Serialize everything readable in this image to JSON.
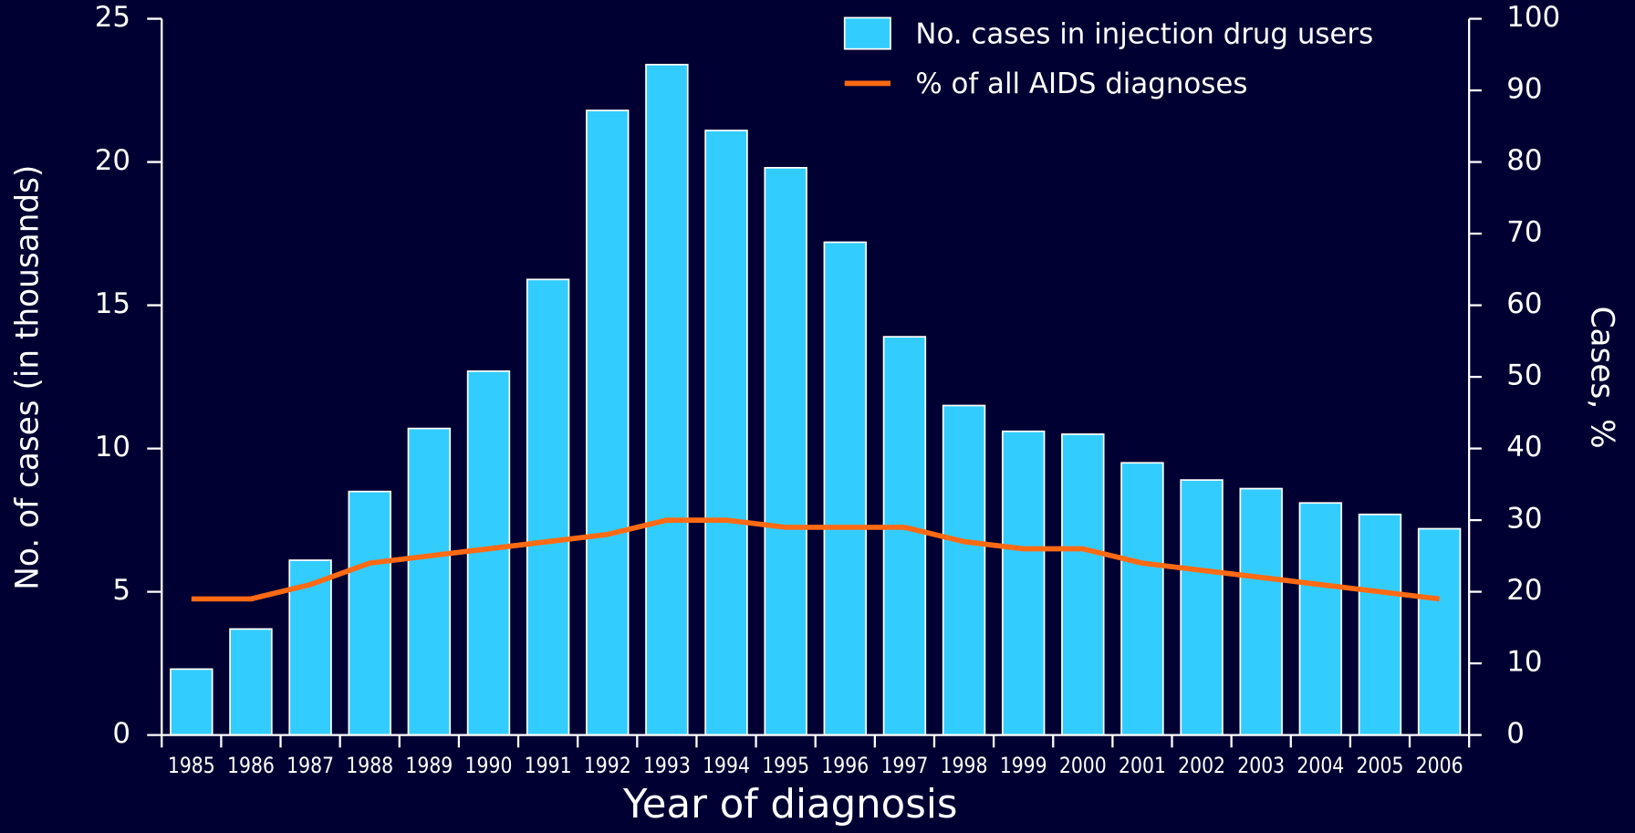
{
  "chart_data": {
    "type": "bar",
    "x_label": "Year of diagnosis",
    "y_label": "No. of cases (in thousands)",
    "y2_label": "Cases, %",
    "categories": [
      "1985",
      "1986",
      "1987",
      "1988",
      "1989",
      "1990",
      "1991",
      "1992",
      "1993",
      "1994",
      "1995",
      "1996",
      "1997",
      "1998",
      "1999",
      "2000",
      "2001",
      "2002",
      "2003",
      "2004",
      "2005",
      "2006"
    ],
    "series": [
      {
        "name": "No. cases in injection drug users",
        "type": "bar",
        "color": "#33ccff",
        "values": [
          2.3,
          3.7,
          6.1,
          8.5,
          10.7,
          12.7,
          15.9,
          21.8,
          23.4,
          21.1,
          19.8,
          17.2,
          13.9,
          11.5,
          10.6,
          10.5,
          9.5,
          8.9,
          8.6,
          8.1,
          7.7,
          7.2
        ]
      },
      {
        "name": "% of all AIDS diagnoses",
        "type": "line",
        "axis": "y2",
        "color": "#ff6a13",
        "values": [
          19,
          19,
          21,
          24,
          25,
          26,
          27,
          28,
          30,
          30,
          29,
          29,
          29,
          27,
          26,
          26,
          24,
          23,
          22,
          21,
          20,
          19
        ]
      }
    ],
    "ylim": [
      0,
      25
    ],
    "yticks": [
      0,
      5,
      10,
      15,
      20,
      25
    ],
    "y2lim": [
      0,
      100
    ],
    "y2ticks": [
      0,
      10,
      20,
      30,
      40,
      50,
      60,
      70,
      80,
      90,
      100
    ],
    "legend": "top-right"
  }
}
